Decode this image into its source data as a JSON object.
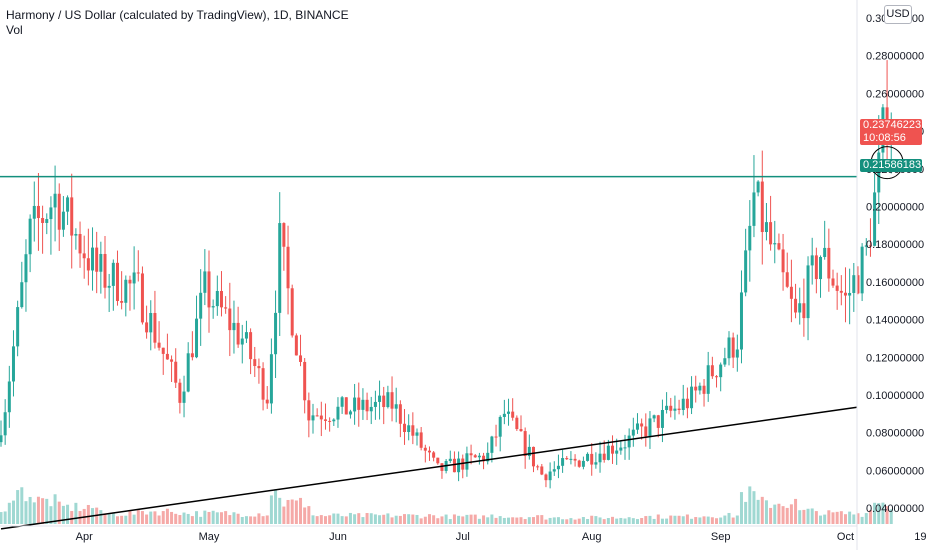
{
  "header": {
    "title": "Harmony / US Dollar (calculated by TradingView), 1D, BINANCE",
    "vol_label": "Vol"
  },
  "currency_button": "USD",
  "badges": {
    "last_price": "0.23746223",
    "countdown": "10:08:56",
    "level": "0.21586183"
  },
  "colors": {
    "up": "#26a69a",
    "down": "#ef5350",
    "up_vol": "#9fd8d2",
    "down_vol": "#f5a9a7",
    "level_line": "#138f7d",
    "trend_line": "#000000",
    "axis_text": "#131722"
  },
  "chart_data": {
    "type": "candlestick",
    "title": "Harmony / US Dollar (calculated by TradingView), 1D, BINANCE",
    "x_ticks": [
      "Apr",
      "May",
      "Jun",
      "Jul",
      "Aug",
      "Sep",
      "Oct",
      "19"
    ],
    "y_ticks": [
      "0.04000000",
      "0.06000000",
      "0.08000000",
      "0.10000000",
      "0.12000000",
      "0.14000000",
      "0.16000000",
      "0.18000000",
      "0.20000000",
      "0.22000000",
      "0.24000000",
      "0.26000000",
      "0.28000000",
      "0.30000000"
    ],
    "y_range": [
      0.0215,
      0.3053
    ],
    "horizontal_level": 0.21586183,
    "last_price": 0.23746223,
    "trend_line": [
      {
        "date": "2021-03-12",
        "price": 0.029
      },
      {
        "date": "2021-10-19",
        "price": 0.0935
      }
    ],
    "annotation": "circle around last candles near 0.215",
    "segments": [
      {
        "from": "2021-03-12",
        "to": "2021-03-14",
        "start": 0.075,
        "end": 0.095,
        "vol": 0.5
      },
      {
        "from": "2021-03-14",
        "to": "2021-03-20",
        "start": 0.095,
        "end": 0.185,
        "vol": 1.5
      },
      {
        "from": "2021-03-20",
        "to": "2021-03-26",
        "start": 0.185,
        "end": 0.205,
        "vol": 1.1
      },
      {
        "from": "2021-03-26",
        "to": "2021-04-05",
        "start": 0.205,
        "end": 0.165,
        "vol": 0.8
      },
      {
        "from": "2021-04-05",
        "to": "2021-04-15",
        "start": 0.165,
        "end": 0.155,
        "vol": 0.5
      },
      {
        "from": "2021-04-15",
        "to": "2021-04-25",
        "start": 0.155,
        "end": 0.1,
        "vol": 0.6
      },
      {
        "from": "2021-04-25",
        "to": "2021-05-01",
        "start": 0.1,
        "end": 0.155,
        "vol": 0.5
      },
      {
        "from": "2021-05-01",
        "to": "2021-05-10",
        "start": 0.155,
        "end": 0.13,
        "vol": 0.5
      },
      {
        "from": "2021-05-10",
        "to": "2021-05-16",
        "start": 0.13,
        "end": 0.1,
        "vol": 0.5
      },
      {
        "from": "2021-05-16",
        "to": "2021-05-19",
        "start": 0.1,
        "end": 0.18,
        "vol": 1.5
      },
      {
        "from": "2021-05-19",
        "to": "2021-05-26",
        "start": 0.18,
        "end": 0.09,
        "vol": 1.0
      },
      {
        "from": "2021-05-26",
        "to": "2021-06-15",
        "start": 0.09,
        "end": 0.095,
        "vol": 0.4
      },
      {
        "from": "2021-06-15",
        "to": "2021-06-26",
        "start": 0.095,
        "end": 0.06,
        "vol": 0.4
      },
      {
        "from": "2021-06-26",
        "to": "2021-07-08",
        "start": 0.06,
        "end": 0.068,
        "vol": 0.35
      },
      {
        "from": "2021-07-08",
        "to": "2021-07-12",
        "start": 0.068,
        "end": 0.09,
        "vol": 0.4
      },
      {
        "from": "2021-07-12",
        "to": "2021-07-21",
        "start": 0.09,
        "end": 0.058,
        "vol": 0.35
      },
      {
        "from": "2021-07-21",
        "to": "2021-08-10",
        "start": 0.058,
        "end": 0.075,
        "vol": 0.3
      },
      {
        "from": "2021-08-10",
        "to": "2021-08-26",
        "start": 0.075,
        "end": 0.098,
        "vol": 0.35
      },
      {
        "from": "2021-08-26",
        "to": "2021-09-06",
        "start": 0.098,
        "end": 0.13,
        "vol": 0.4
      },
      {
        "from": "2021-09-06",
        "to": "2021-09-10",
        "start": 0.13,
        "end": 0.205,
        "vol": 1.4
      },
      {
        "from": "2021-09-10",
        "to": "2021-09-20",
        "start": 0.205,
        "end": 0.14,
        "vol": 1.0
      },
      {
        "from": "2021-09-20",
        "to": "2021-09-26",
        "start": 0.14,
        "end": 0.175,
        "vol": 0.6
      },
      {
        "from": "2021-09-26",
        "to": "2021-10-02",
        "start": 0.175,
        "end": 0.15,
        "vol": 0.5
      },
      {
        "from": "2021-10-02",
        "to": "2021-10-07",
        "start": 0.15,
        "end": 0.175,
        "vol": 0.5
      },
      {
        "from": "2021-10-07",
        "to": "2021-10-10",
        "start": 0.175,
        "end": 0.218,
        "vol": 1.0
      },
      {
        "from": "2021-10-10",
        "to": "2021-10-12",
        "start": 0.218,
        "end": 0.255,
        "vol": 1.1
      },
      {
        "from": "2021-10-12",
        "to": "2021-10-13",
        "start": 0.255,
        "end": 0.2375,
        "vol": 0.7
      }
    ]
  }
}
